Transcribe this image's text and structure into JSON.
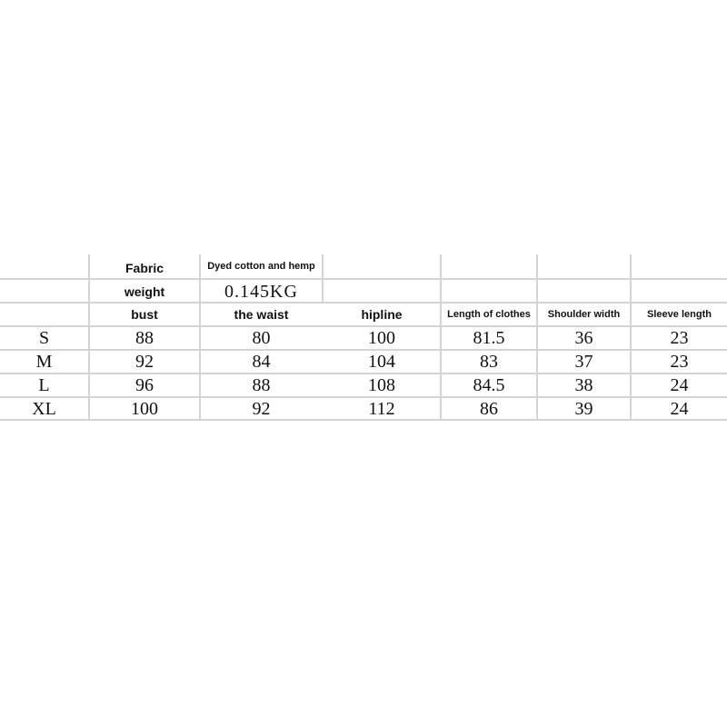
{
  "header": {
    "fabric_label": "Fabric",
    "fabric_value": "Dyed cotton and hemp",
    "weight_label": "weight",
    "weight_value": "0.145KG"
  },
  "columns": [
    "bust",
    "the waist",
    "hipline",
    "Length of clothes",
    "Shoulder width",
    "Sleeve length"
  ],
  "rows": [
    {
      "size": "S",
      "values": [
        "88",
        "80",
        "100",
        "81.5",
        "36",
        "23"
      ]
    },
    {
      "size": "M",
      "values": [
        "92",
        "84",
        "104",
        "83",
        "37",
        "23"
      ]
    },
    {
      "size": "L",
      "values": [
        "96",
        "88",
        "108",
        "84.5",
        "38",
        "24"
      ]
    },
    {
      "size": "XL",
      "values": [
        "100",
        "92",
        "112",
        "86",
        "39",
        "24"
      ]
    }
  ],
  "colors": {
    "grid": "#d4d4d4",
    "text": "#111111"
  }
}
